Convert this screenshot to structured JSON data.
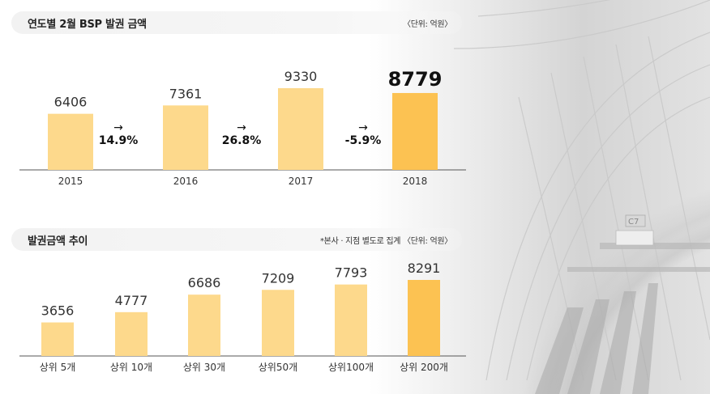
{
  "colors": {
    "bar": "#fdd98c",
    "bar_highlight": "#fcc252",
    "text": "#333333",
    "axis": "#555555"
  },
  "chart_data": [
    {
      "type": "bar",
      "title": "연도별 2월 BSP 발권 금액",
      "unit": "〈단위: 억원〉",
      "categories": [
        "2015",
        "2016",
        "2017",
        "2018"
      ],
      "values": [
        6406,
        7361,
        9330,
        8779
      ],
      "value_labels": [
        "6406",
        "7361",
        "9330",
        "8779"
      ],
      "highlight_index": 3,
      "growth": [
        {
          "arrow": "→",
          "label": "14.9%"
        },
        {
          "arrow": "→",
          "label": "26.8%"
        },
        {
          "arrow": "→",
          "label": "-5.9%"
        }
      ],
      "ylim": [
        0,
        10000
      ]
    },
    {
      "type": "bar",
      "title": "발권금액 추이",
      "unit": "*본사 · 지점 별도로 집계 〈단위: 억원〉",
      "categories": [
        "상위 5개",
        "상위 10개",
        "상위 30개",
        "상위50개",
        "상위100개",
        "상위 200개"
      ],
      "values": [
        3656,
        4777,
        6686,
        7209,
        7793,
        8291
      ],
      "value_labels": [
        "3656",
        "4777",
        "6686",
        "7209",
        "7793",
        "8291"
      ],
      "highlight_index": 5,
      "ylim": [
        0,
        9000
      ]
    }
  ]
}
